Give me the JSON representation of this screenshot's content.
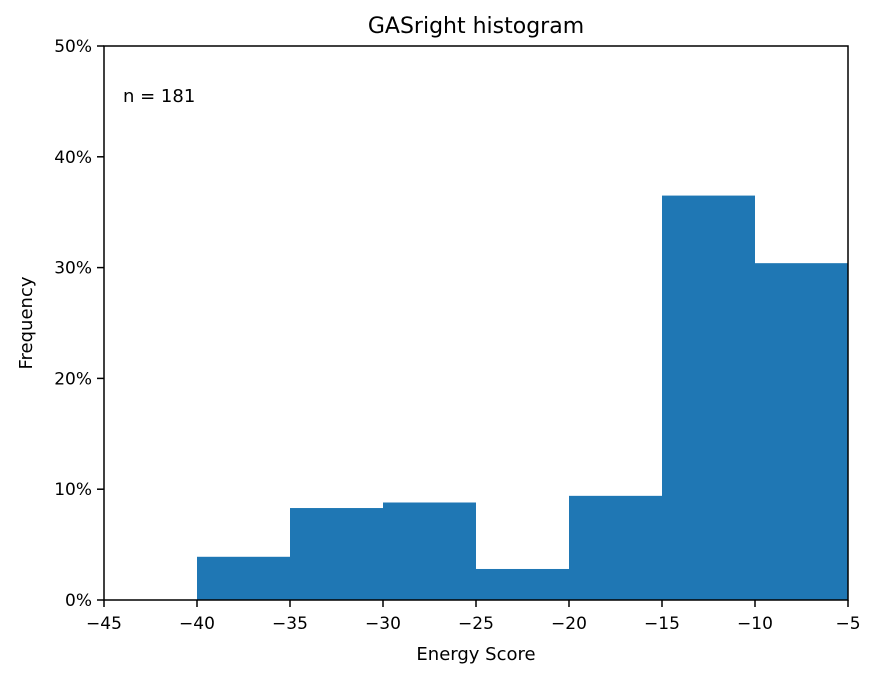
{
  "chart_data": {
    "type": "bar",
    "title": "GASright histogram",
    "xlabel": "Energy Score",
    "ylabel": "Frequency",
    "annotation": "n = 181",
    "bin_edges": [
      -40,
      -35,
      -30,
      -25,
      -20,
      -15,
      -10,
      -5
    ],
    "values": [
      3.9,
      8.3,
      8.8,
      2.8,
      9.4,
      36.5,
      30.4
    ],
    "xlim": [
      -45,
      -5
    ],
    "ylim": [
      0,
      50
    ],
    "xticks": [
      -45,
      -40,
      -35,
      -30,
      -25,
      -20,
      -15,
      -10,
      -5
    ],
    "xtick_labels": [
      "−45",
      "−40",
      "−35",
      "−30",
      "−25",
      "−20",
      "−15",
      "−10",
      "−5"
    ],
    "yticks": [
      0,
      10,
      20,
      30,
      40,
      50
    ],
    "ytick_labels": [
      "0%",
      "10%",
      "20%",
      "30%",
      "40%",
      "50%"
    ],
    "bar_color": "#1f77b4",
    "grid": false
  }
}
